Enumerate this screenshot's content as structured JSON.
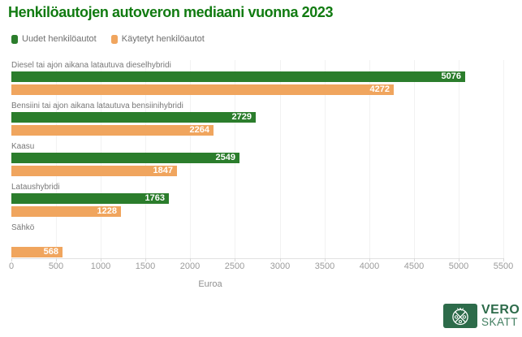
{
  "title": "Henkilöautojen autoveron mediaani vuonna 2023",
  "chart_data": {
    "type": "bar",
    "orientation": "horizontal",
    "title": "Henkilöautojen autoveron mediaani vuonna 2023",
    "categories": [
      "Diesel tai ajon aikana latautuva dieselhybridi",
      "Bensiini tai ajon aikana latautuva bensiinihybridi",
      "Kaasu",
      "Lataushybridi",
      "Sähkö"
    ],
    "series": [
      {
        "name": "Uudet henkilöautot",
        "color": "#2b7d2c",
        "values": [
          5076,
          2729,
          2549,
          1763,
          null
        ]
      },
      {
        "name": "Käytetyt henkilöautot",
        "color": "#f0a55e",
        "values": [
          4272,
          2264,
          1847,
          1228,
          568
        ]
      }
    ],
    "xlabel": "Euroa",
    "ylabel": "",
    "xlim": [
      0,
      5500
    ],
    "x_ticks": [
      0,
      500,
      1000,
      1500,
      2000,
      2500,
      3000,
      3500,
      4000,
      4500,
      5000,
      5500
    ],
    "grid": true,
    "legend_position": "top-left",
    "value_labels": "inside-end-white"
  },
  "footer_logo": {
    "line1": "VERO",
    "line2": "SKATT"
  },
  "colors": {
    "title_green": "#117b11",
    "bar_green": "#2b7d2c",
    "bar_orange": "#f0a55e",
    "logo_green": "#2d6b4a",
    "gridline": "#f2f2f2",
    "axis_line": "#e1e1e1"
  }
}
